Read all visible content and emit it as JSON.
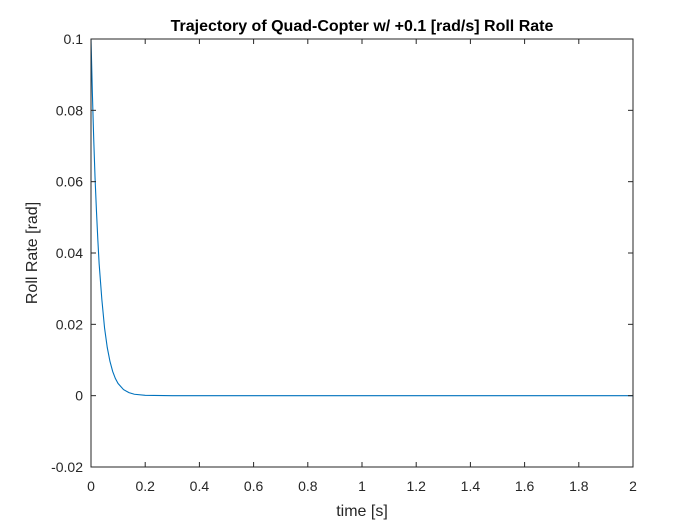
{
  "chart_data": {
    "type": "line",
    "title": "Trajectory of Quad-Copter w/ +0.1 [rad/s] Roll Rate",
    "xlabel": "time [s]",
    "ylabel": "Roll Rate [rad]",
    "xlim": [
      0,
      2
    ],
    "ylim": [
      -0.02,
      0.1
    ],
    "xticks": [
      "0",
      "0.2",
      "0.4",
      "0.6",
      "0.8",
      "1",
      "1.2",
      "1.4",
      "1.6",
      "1.8",
      "2"
    ],
    "yticks": [
      "-0.02",
      "0",
      "0.02",
      "0.04",
      "0.06",
      "0.08",
      "0.1"
    ],
    "grid": false,
    "series": [
      {
        "color": "#0072BD",
        "x": [
          0,
          0.005,
          0.01,
          0.015,
          0.02,
          0.025,
          0.03,
          0.04,
          0.05,
          0.06,
          0.07,
          0.08,
          0.09,
          0.1,
          0.12,
          0.14,
          0.16,
          0.2,
          0.3,
          0.5,
          1.0,
          1.5,
          2.0
        ],
        "y": [
          0.1,
          0.085,
          0.072,
          0.061,
          0.052,
          0.044,
          0.037,
          0.027,
          0.019,
          0.0135,
          0.0096,
          0.0068,
          0.0048,
          0.0034,
          0.0017,
          0.00085,
          0.0004,
          0.0001,
          0.0,
          0.0,
          0.0,
          0.0,
          0.0
        ]
      }
    ]
  }
}
